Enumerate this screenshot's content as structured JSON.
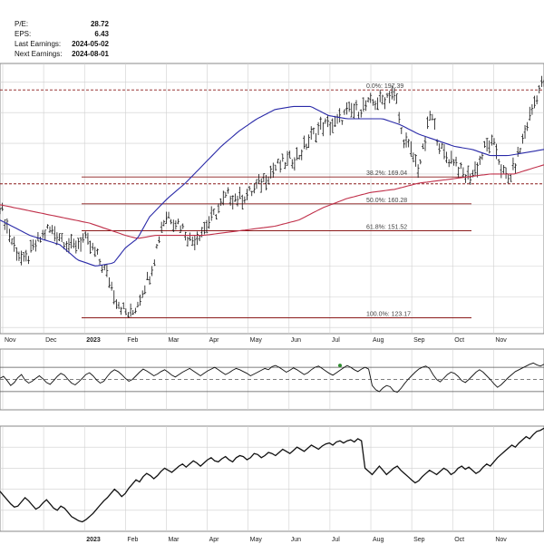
{
  "info": {
    "pe_label": "P/E:",
    "pe_value": "28.72",
    "eps_label": "EPS:",
    "eps_value": "6.43",
    "last_earnings_label": "Last Earnings:",
    "last_earnings_value": "2024-05-02",
    "next_earnings_label": "Next Earnings:",
    "next_earnings_value": "2024-08-01"
  },
  "colors": {
    "price": "#111111",
    "ma_short": "#2a2aa8",
    "ma_long": "#c0304a",
    "fib_line": "#8b1a1a",
    "grid": "#cfcfcf",
    "indicator_point": "#2e8b2e"
  },
  "chart_data": [
    {
      "type": "bar",
      "panel": "price",
      "months": [
        "Nov",
        "Dec",
        "2023",
        "Feb",
        "Mar",
        "Apr",
        "May",
        "Jun",
        "Jul",
        "Aug",
        "Sep",
        "Oct",
        "Nov"
      ],
      "y_range": [
        118,
        206
      ],
      "fibonacci": [
        {
          "label": "0.0%: 197.39",
          "value": 197.39
        },
        {
          "label": "38.2%: 169.04",
          "value": 169.04
        },
        {
          "label": "50.0%: 160.28",
          "value": 160.28
        },
        {
          "label": "61.8%: 151.52",
          "value": 151.52
        },
        {
          "label": "100.0%: 123.17",
          "value": 123.17
        }
      ],
      "reference_levels": [
        166.8
      ],
      "price_path": [
        [
          0,
          160
        ],
        [
          2,
          148
        ],
        [
          4,
          141
        ],
        [
          6,
          147
        ],
        [
          8,
          152
        ],
        [
          10,
          150
        ],
        [
          12,
          146
        ],
        [
          14,
          149
        ],
        [
          16,
          144
        ],
        [
          18,
          137
        ],
        [
          19.5,
          129
        ],
        [
          21,
          125
        ],
        [
          22,
          124
        ],
        [
          23,
          128
        ],
        [
          24,
          133
        ],
        [
          25,
          137
        ],
        [
          26,
          144
        ],
        [
          27,
          153
        ],
        [
          28,
          157
        ],
        [
          29,
          155
        ],
        [
          30,
          154
        ],
        [
          31,
          151
        ],
        [
          32,
          148
        ],
        [
          33,
          150
        ],
        [
          34,
          152
        ],
        [
          36,
          157
        ],
        [
          38,
          163
        ],
        [
          40,
          162
        ],
        [
          42,
          164
        ],
        [
          44,
          168
        ],
        [
          46,
          172
        ],
        [
          48,
          174
        ],
        [
          50,
          176
        ],
        [
          52,
          182
        ],
        [
          54,
          186
        ],
        [
          56,
          186
        ],
        [
          58,
          190
        ],
        [
          60,
          191
        ],
        [
          62,
          193
        ],
        [
          64,
          194
        ],
        [
          65.5,
          197
        ],
        [
          66.5,
          193
        ],
        [
          67,
          184
        ],
        [
          68,
          180
        ],
        [
          69,
          176
        ],
        [
          70,
          172
        ],
        [
          71,
          179
        ],
        [
          72,
          190
        ],
        [
          73,
          183
        ],
        [
          74,
          177
        ],
        [
          75,
          175
        ],
        [
          76,
          175
        ],
        [
          77,
          171
        ],
        [
          78,
          169
        ],
        [
          79,
          170
        ],
        [
          80,
          173
        ],
        [
          81,
          178
        ],
        [
          82,
          180
        ],
        [
          83,
          178
        ],
        [
          84,
          171
        ],
        [
          85,
          168
        ],
        [
          86,
          172
        ],
        [
          87,
          178
        ],
        [
          88,
          185
        ],
        [
          89,
          191
        ],
        [
          90,
          197
        ],
        [
          91,
          200
        ]
      ],
      "ma_short_path": [
        [
          0,
          155
        ],
        [
          5,
          150
        ],
        [
          10,
          147
        ],
        [
          13,
          142
        ],
        [
          16,
          140
        ],
        [
          19,
          141
        ],
        [
          21,
          146
        ],
        [
          23,
          149
        ],
        [
          25,
          156
        ],
        [
          28,
          162
        ],
        [
          31,
          167
        ],
        [
          34,
          173
        ],
        [
          37,
          179
        ],
        [
          40,
          184
        ],
        [
          43,
          188
        ],
        [
          46,
          191
        ],
        [
          49,
          192
        ],
        [
          52,
          192
        ],
        [
          55,
          189
        ],
        [
          58,
          188
        ],
        [
          61,
          188
        ],
        [
          64,
          188
        ],
        [
          67,
          186
        ],
        [
          70,
          183
        ],
        [
          73,
          181
        ],
        [
          76,
          179
        ],
        [
          79,
          178
        ],
        [
          82,
          176
        ],
        [
          85,
          176
        ],
        [
          88,
          177
        ],
        [
          91,
          178
        ]
      ],
      "ma_long_path": [
        [
          0,
          160
        ],
        [
          5,
          158
        ],
        [
          10,
          156
        ],
        [
          15,
          154
        ],
        [
          18,
          152
        ],
        [
          21,
          150
        ],
        [
          23,
          149
        ],
        [
          26,
          150
        ],
        [
          30,
          150
        ],
        [
          34,
          150
        ],
        [
          38,
          151
        ],
        [
          42,
          152
        ],
        [
          46,
          153
        ],
        [
          50,
          155
        ],
        [
          54,
          159
        ],
        [
          58,
          162
        ],
        [
          62,
          164
        ],
        [
          66,
          165
        ],
        [
          70,
          167
        ],
        [
          74,
          168
        ],
        [
          78,
          169
        ],
        [
          82,
          170
        ],
        [
          86,
          170
        ],
        [
          91,
          173
        ]
      ]
    },
    {
      "type": "line",
      "panel": "indicator",
      "y_range": [
        0,
        100
      ],
      "reference_levels": [
        70,
        50,
        30
      ],
      "series": [
        {
          "values": [
            52,
            55,
            48,
            40,
            45,
            53,
            58,
            49,
            44,
            47,
            52,
            56,
            51,
            45,
            42,
            48,
            55,
            60,
            57,
            50,
            44,
            41,
            46,
            52,
            58,
            61,
            56,
            49,
            44,
            47,
            55,
            62,
            66,
            63,
            58,
            52,
            47,
            50,
            56,
            62,
            67,
            64,
            60,
            56,
            59,
            63,
            66,
            62,
            57,
            54,
            58,
            62,
            65,
            68,
            64,
            60,
            56,
            60,
            64,
            67,
            70,
            66,
            62,
            58,
            61,
            65,
            68,
            66,
            63,
            60,
            56,
            59,
            62,
            65,
            68,
            66,
            71,
            73,
            70,
            66,
            62,
            65,
            69,
            66,
            62,
            58,
            61,
            66,
            70,
            72,
            68,
            64,
            60,
            57,
            61,
            65,
            69,
            73,
            70,
            66,
            63,
            67,
            70,
            67,
            40,
            33,
            30,
            36,
            40,
            38,
            31,
            29,
            35,
            43,
            50,
            56,
            62,
            67,
            70,
            72,
            68,
            58,
            50,
            46,
            52,
            58,
            62,
            60,
            55,
            48,
            45,
            50,
            56,
            62,
            66,
            62,
            56,
            50,
            43,
            37,
            41,
            47,
            53,
            58,
            63,
            66,
            69,
            72,
            75,
            77,
            74,
            72,
            75
          ]
        }
      ]
    },
    {
      "type": "line",
      "panel": "relative",
      "y_range": [
        0,
        100
      ],
      "series": [
        {
          "values": [
            38,
            34,
            30,
            26,
            23,
            24,
            28,
            32,
            29,
            25,
            21,
            23,
            27,
            30,
            26,
            22,
            20,
            24,
            22,
            18,
            14,
            12,
            10,
            9,
            11,
            14,
            17,
            21,
            25,
            29,
            32,
            36,
            40,
            37,
            33,
            36,
            41,
            45,
            49,
            47,
            52,
            55,
            53,
            50,
            53,
            57,
            60,
            58,
            56,
            59,
            62,
            64,
            61,
            64,
            67,
            65,
            62,
            65,
            68,
            70,
            67,
            66,
            69,
            71,
            68,
            66,
            70,
            72,
            71,
            68,
            70,
            74,
            73,
            70,
            72,
            75,
            74,
            72,
            75,
            78,
            76,
            74,
            77,
            80,
            78,
            76,
            79,
            82,
            80,
            78,
            81,
            83,
            84,
            82,
            85,
            86,
            84,
            86,
            87,
            85,
            88,
            86,
            60,
            57,
            54,
            58,
            62,
            58,
            54,
            57,
            60,
            62,
            58,
            55,
            52,
            49,
            46,
            48,
            52,
            55,
            58,
            56,
            54,
            57,
            60,
            58,
            54,
            56,
            60,
            62,
            59,
            61,
            58,
            55,
            57,
            61,
            64,
            62,
            66,
            70,
            73,
            76,
            79,
            82,
            80,
            84,
            87,
            90,
            88,
            92,
            95,
            96,
            98
          ]
        }
      ],
      "x_labels": [
        "2023",
        "Feb",
        "Mar",
        "Apr",
        "May",
        "Jun",
        "Jul",
        "Aug",
        "Sep",
        "Oct",
        "Nov"
      ]
    }
  ]
}
